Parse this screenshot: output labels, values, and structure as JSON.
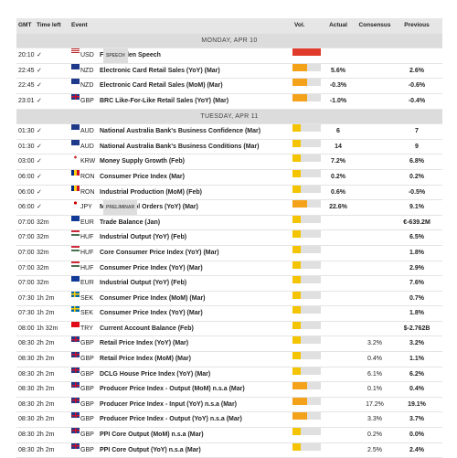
{
  "header": {
    "columns": [
      "GMT",
      "Time left",
      "Event",
      "Vol.",
      "Actual",
      "Consensus",
      "Previous"
    ]
  },
  "days": [
    {
      "label": "MONDAY, APR 10",
      "rows": [
        {
          "time": "20:10",
          "left": "✓",
          "currency": "USD",
          "event": "Fed's Yellen Speech",
          "badge": "SPEECH",
          "vol": "high"
        },
        {
          "time": "22:45",
          "left": "✓",
          "currency": "NZD",
          "event": "Electronic Card Retail Sales (YoY) (Mar)",
          "vol": "medium",
          "actual": "5.6%",
          "previous": "2.6%"
        },
        {
          "time": "22:45",
          "left": "✓",
          "currency": "NZD",
          "event": "Electronic Card Retail Sales (MoM) (Mar)",
          "vol": "medium",
          "actual": "-0.3%",
          "previous": "-0.6%"
        },
        {
          "time": "23:01",
          "left": "✓",
          "currency": "GBP",
          "event": "BRC Like-For-Like Retail Sales (YoY) (Mar)",
          "vol": "medium",
          "actual": "-1.0%",
          "previous": "-0.4%"
        }
      ]
    },
    {
      "label": "TUESDAY, APR 11",
      "rows": [
        {
          "time": "01:30",
          "left": "✓",
          "currency": "AUD",
          "event": "National Australia Bank's Business Confidence (Mar)",
          "vol": "low",
          "actual": "6",
          "previous": "7"
        },
        {
          "time": "01:30",
          "left": "✓",
          "currency": "AUD",
          "event": "National Australia Bank's Business Conditions (Mar)",
          "vol": "low",
          "actual": "14",
          "previous": "9"
        },
        {
          "time": "03:00",
          "left": "✓",
          "currency": "KRW",
          "event": "Money Supply Growth (Feb)",
          "vol": "low",
          "actual": "7.2%",
          "previous": "6.8%"
        },
        {
          "time": "06:00",
          "left": "✓",
          "currency": "RON",
          "event": "Consumer Price Index (Mar)",
          "vol": "low",
          "actual": "0.2%",
          "previous": "0.2%"
        },
        {
          "time": "06:00",
          "left": "✓",
          "currency": "RON",
          "event": "Industrial Production (MoM) (Feb)",
          "vol": "low",
          "actual": "0.6%",
          "previous": "-0.5%"
        },
        {
          "time": "06:00",
          "left": "✓",
          "currency": "JPY",
          "event": "Machine Tool Orders (YoY) (Mar)",
          "badge": "PRELIMINAR",
          "vol": "medium",
          "actual": "22.6%",
          "previous": "9.1%"
        },
        {
          "time": "07:00",
          "left": "32m",
          "currency": "EUR",
          "event": "Trade Balance (Jan)",
          "vol": "low",
          "previous": "€-639.2M"
        },
        {
          "time": "07:00",
          "left": "32m",
          "currency": "HUF",
          "event": "Industrial Output (YoY) (Feb)",
          "vol": "low",
          "previous": "6.5%"
        },
        {
          "time": "07:00",
          "left": "32m",
          "currency": "HUF",
          "event": "Core Consumer Price Index (YoY) (Mar)",
          "vol": "low",
          "previous": "1.8%"
        },
        {
          "time": "07:00",
          "left": "32m",
          "currency": "HUF",
          "event": "Consumer Price Index (YoY) (Mar)",
          "vol": "low",
          "previous": "2.9%"
        },
        {
          "time": "07:00",
          "left": "32m",
          "currency": "EUR",
          "event": "Industrial Output (YoY) (Feb)",
          "vol": "low",
          "previous": "7.6%"
        },
        {
          "time": "07:30",
          "left": "1h 2m",
          "currency": "SEK",
          "event": "Consumer Price Index (MoM) (Mar)",
          "vol": "low",
          "previous": "0.7%"
        },
        {
          "time": "07:30",
          "left": "1h 2m",
          "currency": "SEK",
          "event": "Consumer Price Index (YoY) (Mar)",
          "vol": "low",
          "previous": "1.8%"
        },
        {
          "time": "08:00",
          "left": "1h 32m",
          "currency": "TRY",
          "event": "Current Account Balance (Feb)",
          "vol": "low",
          "previous": "$-2.762B"
        },
        {
          "time": "08:30",
          "left": "2h 2m",
          "currency": "GBP",
          "event": "Retail Price Index (YoY) (Mar)",
          "vol": "low",
          "consensus": "3.2%",
          "previous": "3.2%"
        },
        {
          "time": "08:30",
          "left": "2h 2m",
          "currency": "GBP",
          "event": "Retail Price Index (MoM) (Mar)",
          "vol": "low",
          "consensus": "0.4%",
          "previous": "1.1%"
        },
        {
          "time": "08:30",
          "left": "2h 2m",
          "currency": "GBP",
          "event": "DCLG House Price Index (YoY) (Mar)",
          "vol": "low",
          "consensus": "6.1%",
          "previous": "6.2%"
        },
        {
          "time": "08:30",
          "left": "2h 2m",
          "currency": "GBP",
          "event": "Producer Price Index - Output (MoM) n.s.a (Mar)",
          "vol": "medium",
          "consensus": "0.1%",
          "previous": "0.4%"
        },
        {
          "time": "08:30",
          "left": "2h 2m",
          "currency": "GBP",
          "event": "Producer Price Index - Input (YoY) n.s.a (Mar)",
          "vol": "medium",
          "consensus": "17.2%",
          "previous": "19.1%"
        },
        {
          "time": "08:30",
          "left": "2h 2m",
          "currency": "GBP",
          "event": "Producer Price Index - Output (YoY) n.s.a (Mar)",
          "vol": "medium",
          "consensus": "3.3%",
          "previous": "3.7%"
        },
        {
          "time": "08:30",
          "left": "2h 2m",
          "currency": "GBP",
          "event": "PPI Core Output (MoM) n.s.a (Mar)",
          "vol": "low",
          "consensus": "0.2%",
          "previous": "0.0%"
        },
        {
          "time": "08:30",
          "left": "2h 2m",
          "currency": "GBP",
          "event": "PPI Core Output (YoY) n.s.a (Mar)",
          "vol": "low",
          "consensus": "2.5%",
          "previous": "2.4%"
        }
      ]
    }
  ]
}
